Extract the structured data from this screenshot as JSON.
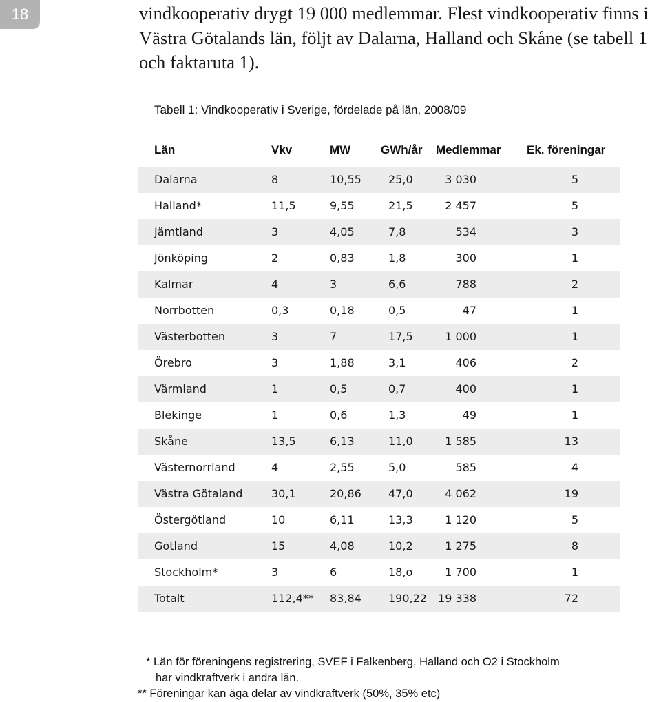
{
  "page_number": "18",
  "intro_text": "vindkooperativ drygt 19 000 medlemmar. Flest vindkooperativ finns i Västra Götalands län, följt av Dalarna, Halland och Skåne (se tabell 1 och faktaruta 1).",
  "table": {
    "caption": "Tabell 1: Vindkooperativ i Sverige, fördelade på län, 2008/09",
    "headers": [
      "Län",
      "Vkv",
      "MW",
      "GWh/år",
      "Medlemmar",
      "Ek. föreningar"
    ],
    "rows": [
      [
        "Dalarna",
        "8",
        "10,55",
        "25,0",
        "3 030",
        "5"
      ],
      [
        "Halland*",
        "11,5",
        "9,55",
        "21,5",
        "2 457",
        "5"
      ],
      [
        "Jämtland",
        "3",
        "4,05",
        "7,8",
        "534",
        "3"
      ],
      [
        "Jönköping",
        "2",
        "0,83",
        "1,8",
        "300",
        "1"
      ],
      [
        "Kalmar",
        "4",
        "3",
        "6,6",
        "788",
        "2"
      ],
      [
        "Norrbotten",
        "0,3",
        "0,18",
        "0,5",
        "47",
        "1"
      ],
      [
        "Västerbotten",
        "3",
        "7",
        "17,5",
        "1 000",
        "1"
      ],
      [
        "Örebro",
        "3",
        "1,88",
        "3,1",
        "406",
        "2"
      ],
      [
        "Värmland",
        "1",
        "0,5",
        "0,7",
        "400",
        "1"
      ],
      [
        "Blekinge",
        "1",
        "0,6",
        "1,3",
        "49",
        "1"
      ],
      [
        "Skåne",
        "13,5",
        "6,13",
        "11,0",
        "1 585",
        "13"
      ],
      [
        "Västernorrland",
        "4",
        "2,55",
        "5,0",
        "585",
        "4"
      ],
      [
        "Västra Götaland",
        "30,1",
        "20,86",
        "47,0",
        "4 062",
        "19"
      ],
      [
        "Östergötland",
        "10",
        "6,11",
        "13,3",
        "1 120",
        "5"
      ],
      [
        "Gotland",
        "15",
        "4,08",
        "10,2",
        "1 275",
        "8"
      ],
      [
        "Stockholm*",
        "3",
        "6",
        "18,o",
        "1 700",
        "1"
      ],
      [
        "Totalt",
        "112,4**",
        "83,84",
        "190,22",
        "19 338",
        "72"
      ]
    ]
  },
  "footnotes": {
    "note1_line1": "* Län för föreningens registrering, SVEF i Falkenberg, Halland och O2 i Stockholm",
    "note1_line2": "har vindkraftverk i andra län.",
    "note2": "** Föreningar kan äga delar av vindkraftverk (50%, 35% etc)"
  },
  "colors": {
    "badge": "#b3b3b3",
    "row_shade": "#ececec"
  }
}
